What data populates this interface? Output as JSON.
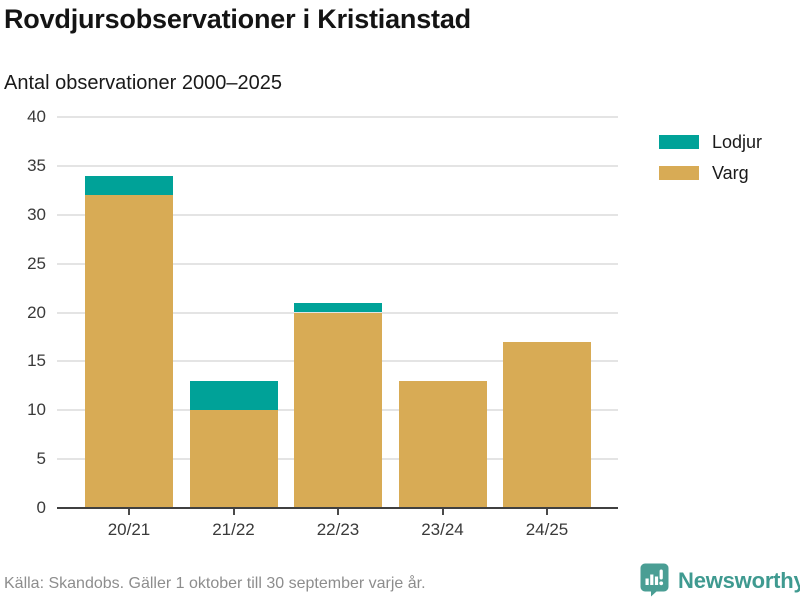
{
  "header": {
    "title": "Rovdjursobservationer i Kristianstad",
    "subtitle": "Antal observationer 2000–2025"
  },
  "chart_data": {
    "type": "bar",
    "stacked": true,
    "title": "Rovdjursobservationer i Kristianstad",
    "subtitle": "Antal observationer 2000–2025",
    "categories": [
      "20/21",
      "21/22",
      "22/23",
      "23/24",
      "24/25"
    ],
    "series": [
      {
        "name": "Varg",
        "color": "#d8ab55",
        "values": [
          32,
          10,
          20,
          13,
          17
        ]
      },
      {
        "name": "Lodjur",
        "color": "#00a298",
        "values": [
          2,
          3,
          1,
          0,
          0
        ]
      }
    ],
    "totals": [
      34,
      13,
      21,
      13,
      17
    ],
    "legend": [
      {
        "label": "Lodjur",
        "color": "#00a298"
      },
      {
        "label": "Varg",
        "color": "#d8ab55"
      }
    ],
    "legend_position": "right",
    "xlabel": "",
    "ylabel": "",
    "ylim": [
      0,
      40
    ],
    "yticks": [
      0,
      5,
      10,
      15,
      20,
      25,
      30,
      35,
      40
    ],
    "grid": true
  },
  "footer": {
    "source": "Källa: Skandobs. Gäller 1 oktober till 30 september varje år.",
    "brand": "Newsworthy"
  },
  "colors": {
    "lodjur": "#00a298",
    "varg": "#d8ab55",
    "brand_teal": "#3f9a90",
    "gridline": "#e4e4e4",
    "axis": "#404040",
    "muted_text": "#8d8d8d"
  }
}
